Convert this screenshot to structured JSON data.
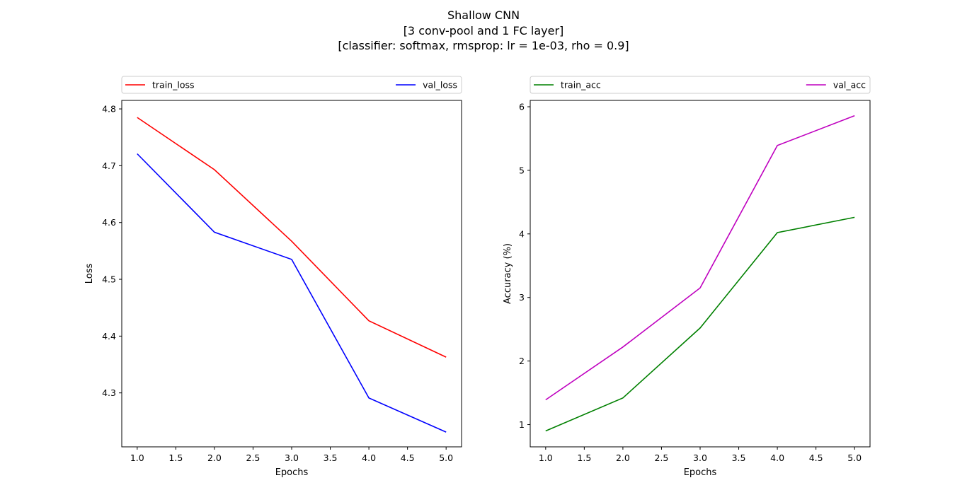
{
  "figure": {
    "title_lines": [
      "Shallow CNN",
      "[3 conv-pool and 1 FC layer]",
      "[classifier: softmax, rmsprop: lr = 1e-03, rho = 0.9]"
    ]
  },
  "chart_data": [
    {
      "type": "line",
      "xlabel": "Epochs",
      "ylabel": "Loss",
      "xlim": [
        0.8,
        5.2
      ],
      "ylim": [
        4.205,
        4.815
      ],
      "xticks": [
        1.0,
        1.5,
        2.0,
        2.5,
        3.0,
        3.5,
        4.0,
        4.5,
        5.0
      ],
      "yticks": [
        4.3,
        4.4,
        4.5,
        4.6,
        4.7,
        4.8
      ],
      "x": [
        1,
        2,
        3,
        4,
        5
      ],
      "legend": "top, outside, expanded",
      "series": [
        {
          "name": "train_loss",
          "color": "#ff0000",
          "values": [
            4.785,
            4.693,
            4.567,
            4.427,
            4.363
          ]
        },
        {
          "name": "val_loss",
          "color": "#0000ff",
          "values": [
            4.721,
            4.583,
            4.535,
            4.291,
            4.231
          ]
        }
      ],
      "grid": false
    },
    {
      "type": "line",
      "xlabel": "Epochs",
      "ylabel": "Accuracy (%)",
      "xlim": [
        0.8,
        5.2
      ],
      "ylim": [
        0.65,
        6.1
      ],
      "xticks": [
        1.0,
        1.5,
        2.0,
        2.5,
        3.0,
        3.5,
        4.0,
        4.5,
        5.0
      ],
      "yticks": [
        1,
        2,
        3,
        4,
        5,
        6
      ],
      "x": [
        1,
        2,
        3,
        4,
        5
      ],
      "legend": "top, outside, expanded",
      "series": [
        {
          "name": "train_acc",
          "color": "#008000",
          "values": [
            0.9,
            1.42,
            2.52,
            4.02,
            4.26
          ]
        },
        {
          "name": "val_acc",
          "color": "#bf00bf",
          "values": [
            1.39,
            2.22,
            3.15,
            5.39,
            5.86
          ]
        }
      ],
      "grid": false
    }
  ]
}
